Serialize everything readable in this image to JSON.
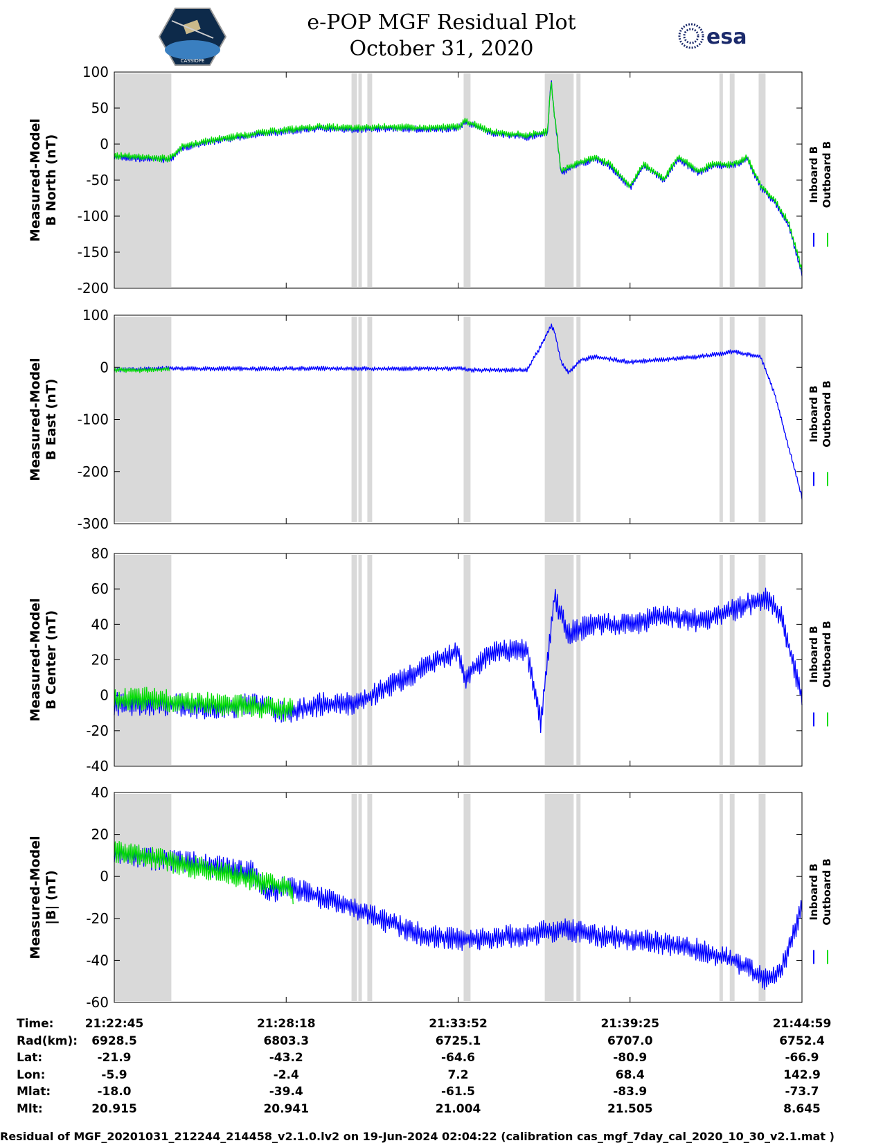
{
  "header": {
    "title_line1": "e-POP MGF Residual Plot",
    "title_line2": "October 31, 2020",
    "logo_left_text": "CASSIOPE",
    "logo_right_text": "esa"
  },
  "colors": {
    "inboard": "#0000ff",
    "outboard": "#00dd00",
    "shade": "#d9d9d9"
  },
  "chart_data": [
    {
      "type": "line",
      "ylabel_line1": "Measured-Model",
      "ylabel_line2": "B North (nT)",
      "ylim": [
        -200,
        100
      ],
      "yticks": [
        100,
        50,
        0,
        -50,
        -100,
        -150,
        -200
      ],
      "legend": [
        "Inboard B",
        "Outboard B"
      ],
      "series": [
        {
          "name": "Inboard B",
          "x": [
            0,
            0.04,
            0.08,
            0.1,
            0.15,
            0.2,
            0.25,
            0.3,
            0.35,
            0.4,
            0.45,
            0.5,
            0.51,
            0.55,
            0.6,
            0.63,
            0.635,
            0.64,
            0.65,
            0.67,
            0.7,
            0.72,
            0.75,
            0.77,
            0.8,
            0.82,
            0.85,
            0.87,
            0.9,
            0.92,
            0.94,
            0.96,
            0.98,
            1.0
          ],
          "y": [
            -18,
            -20,
            -22,
            -5,
            5,
            12,
            18,
            22,
            20,
            22,
            20,
            22,
            30,
            15,
            10,
            15,
            90,
            40,
            -40,
            -30,
            -20,
            -30,
            -60,
            -30,
            -50,
            -20,
            -40,
            -30,
            -30,
            -20,
            -60,
            -80,
            -110,
            -180
          ]
        },
        {
          "name": "Outboard B",
          "x": [
            0,
            0.04,
            0.08,
            0.1,
            0.15,
            0.2,
            0.25,
            0.3,
            0.35,
            0.4,
            0.45,
            0.5,
            0.51,
            0.55,
            0.6,
            0.63,
            0.635,
            0.64,
            0.65,
            0.67,
            0.7,
            0.72,
            0.75,
            0.77,
            0.8,
            0.82,
            0.85,
            0.87,
            0.9,
            0.92,
            0.94,
            0.96,
            0.98,
            1.0
          ],
          "y": [
            -16,
            -18,
            -20,
            -3,
            7,
            14,
            20,
            24,
            22,
            24,
            22,
            24,
            32,
            17,
            12,
            17,
            88,
            42,
            -38,
            -28,
            -18,
            -28,
            -58,
            -28,
            -48,
            -18,
            -38,
            -28,
            -28,
            -18,
            -58,
            -78,
            -108,
            -175
          ]
        }
      ]
    },
    {
      "type": "line",
      "ylabel_line1": "Measured-Model",
      "ylabel_line2": "B East (nT)",
      "ylim": [
        -300,
        100
      ],
      "yticks": [
        100,
        0,
        -100,
        -200,
        -300
      ],
      "legend": [
        "Inboard B",
        "Outboard B"
      ],
      "series": [
        {
          "name": "Inboard B",
          "x": [
            0,
            0.08,
            0.2,
            0.3,
            0.4,
            0.5,
            0.52,
            0.6,
            0.62,
            0.635,
            0.64,
            0.65,
            0.66,
            0.68,
            0.7,
            0.75,
            0.8,
            0.85,
            0.9,
            0.94,
            0.96,
            0.98,
            1.0
          ],
          "y": [
            -5,
            -2,
            -3,
            -2,
            -3,
            -2,
            -5,
            -5,
            40,
            80,
            70,
            10,
            -10,
            15,
            20,
            10,
            15,
            20,
            30,
            20,
            -50,
            -150,
            -250
          ]
        },
        {
          "name": "Outboard B",
          "x": [
            0,
            0.04,
            0.08
          ],
          "y": [
            -5,
            -6,
            -3
          ]
        }
      ]
    },
    {
      "type": "line",
      "ylabel_line1": "Measured-Model",
      "ylabel_line2": "B Center (nT)",
      "ylim": [
        -40,
        80
      ],
      "yticks": [
        80,
        60,
        40,
        20,
        0,
        -20,
        -40
      ],
      "legend": [
        "Inboard B",
        "Outboard B"
      ],
      "series": [
        {
          "name": "Inboard B",
          "x": [
            0,
            0.08,
            0.15,
            0.2,
            0.25,
            0.3,
            0.35,
            0.4,
            0.45,
            0.48,
            0.5,
            0.51,
            0.55,
            0.6,
            0.62,
            0.64,
            0.65,
            0.66,
            0.7,
            0.75,
            0.8,
            0.85,
            0.9,
            0.95,
            0.97,
            1.0
          ],
          "y": [
            -5,
            -5,
            -8,
            -5,
            -10,
            -5,
            -5,
            5,
            15,
            22,
            25,
            10,
            25,
            25,
            -15,
            55,
            45,
            35,
            40,
            40,
            45,
            42,
            48,
            55,
            45,
            -2
          ]
        },
        {
          "name": "Outboard B",
          "x": [
            0,
            0.04,
            0.25,
            0.26
          ],
          "y": [
            -3,
            -2,
            -8,
            -6
          ]
        }
      ]
    },
    {
      "type": "line",
      "ylabel_line1": "Measured-Model",
      "ylabel_line2": "|B| (nT)",
      "ylim": [
        -60,
        40
      ],
      "yticks": [
        40,
        20,
        0,
        -20,
        -40,
        -60
      ],
      "legend": [
        "Inboard B",
        "Outboard B"
      ],
      "series": [
        {
          "name": "Inboard B",
          "x": [
            0,
            0.08,
            0.2,
            0.22,
            0.25,
            0.3,
            0.35,
            0.4,
            0.45,
            0.5,
            0.6,
            0.65,
            0.7,
            0.8,
            0.85,
            0.9,
            0.95,
            0.97,
            1.0
          ],
          "y": [
            10,
            8,
            2,
            -8,
            -5,
            -10,
            -15,
            -22,
            -28,
            -30,
            -28,
            -25,
            -28,
            -32,
            -35,
            -40,
            -50,
            -45,
            -15
          ]
        },
        {
          "name": "Outboard B",
          "x": [
            0,
            0.04,
            0.25,
            0.26
          ],
          "y": [
            12,
            10,
            -5,
            -8
          ]
        }
      ]
    }
  ],
  "shaded_spans": [
    [
      0.0,
      0.083
    ],
    [
      0.345,
      0.353
    ],
    [
      0.355,
      0.36
    ],
    [
      0.368,
      0.375
    ],
    [
      0.508,
      0.518
    ],
    [
      0.626,
      0.668
    ],
    [
      0.672,
      0.678
    ],
    [
      0.88,
      0.885
    ],
    [
      0.895,
      0.902
    ],
    [
      0.937,
      0.947
    ]
  ],
  "info": {
    "labels": [
      "Time:",
      "Rad(km):",
      "Lat:",
      "Lon:",
      "Mlat:",
      "Mlt:"
    ],
    "columns": [
      [
        "21:22:45",
        "6928.5",
        "-21.9",
        "-5.9",
        "-18.0",
        "20.915"
      ],
      [
        "21:28:18",
        "6803.3",
        "-43.2",
        "-2.4",
        "-39.4",
        "20.941"
      ],
      [
        "21:33:52",
        "6725.1",
        "-64.6",
        "7.2",
        "-61.5",
        "21.004"
      ],
      [
        "21:39:25",
        "6707.0",
        "-80.9",
        "68.4",
        "-83.9",
        "21.505"
      ],
      [
        "21:44:59",
        "6752.4",
        "-66.9",
        "142.9",
        "-73.7",
        "8.645"
      ]
    ]
  },
  "footer": "Residual of MGF_20201031_212244_214458_v2.1.0.lv2 on 19-Jun-2024 02:04:22 (calibration cas_mgf_7day_cal_2020_10_30_v2.1.mat )"
}
